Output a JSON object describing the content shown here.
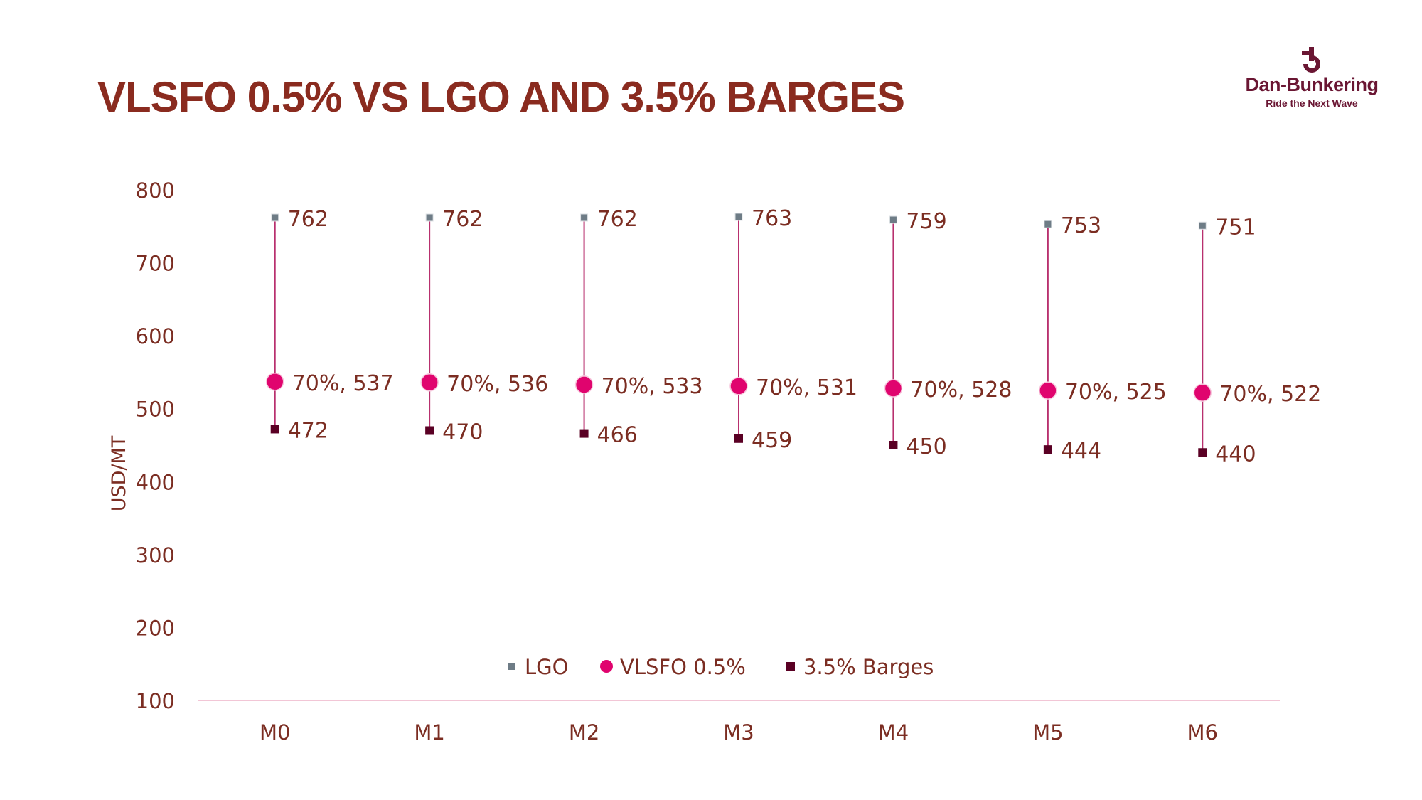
{
  "title": "VLSFO 0.5% VS LGO AND 3.5% BARGES",
  "logo": {
    "name": "Dan-Bunkering",
    "tagline": "Ride the Next Wave"
  },
  "colors": {
    "title": "#8a2b1f",
    "labels": "#7b2d22",
    "lgo": "#6e7c86",
    "vlsfo": "#e0046e",
    "barges": "#5a0024",
    "connector": "#b8306e",
    "axis": "#f2c6d6"
  },
  "chart_data": {
    "type": "scatter",
    "title": "VLSFO 0.5% VS LGO AND 3.5% BARGES",
    "xlabel": "",
    "ylabel": "USD/MT",
    "ylim": [
      100,
      800
    ],
    "yticks": [
      100,
      200,
      300,
      400,
      500,
      600,
      700,
      800
    ],
    "categories": [
      "M0",
      "M1",
      "M2",
      "M3",
      "M4",
      "M5",
      "M6"
    ],
    "grid": false,
    "legend_placement": "bottom-center",
    "series": [
      {
        "name": "LGO",
        "marker": "small-square",
        "values": [
          762,
          762,
          762,
          763,
          759,
          753,
          751
        ],
        "labels": [
          "762",
          "762",
          "762",
          "763",
          "759",
          "753",
          "751"
        ]
      },
      {
        "name": "VLSFO 0.5%",
        "marker": "circle",
        "values": [
          537,
          536,
          533,
          531,
          528,
          525,
          522
        ],
        "labels": [
          "70%, 537",
          "70%, 536",
          "70%, 533",
          "70%, 531",
          "70%, 528",
          "70%, 525",
          "70%, 522"
        ]
      },
      {
        "name": "3.5% Barges",
        "marker": "square",
        "values": [
          472,
          470,
          466,
          459,
          450,
          444,
          440
        ],
        "labels": [
          "472",
          "470",
          "466",
          "459",
          "450",
          "444",
          "440"
        ]
      }
    ]
  }
}
